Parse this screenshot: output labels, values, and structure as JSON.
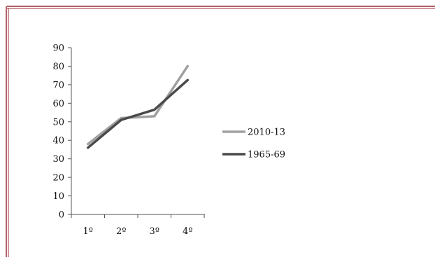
{
  "frame_color": "#9b2d3a",
  "chart_data": {
    "type": "line",
    "categories": [
      "1º",
      "2º",
      "3º",
      "4º"
    ],
    "series": [
      {
        "name": "2010-13",
        "values": [
          38,
          52,
          53,
          80
        ],
        "color": "#a0a0a0"
      },
      {
        "name": "1965-69",
        "values": [
          36,
          51,
          56.5,
          72.5
        ],
        "color": "#4a4a4a"
      }
    ],
    "yticks": [
      "0",
      "10",
      "20",
      "30",
      "40",
      "50",
      "60",
      "70",
      "80",
      "90"
    ],
    "ylim": [
      0,
      90
    ],
    "title": "",
    "xlabel": "",
    "ylabel": "",
    "grid": false,
    "legend": "right"
  }
}
